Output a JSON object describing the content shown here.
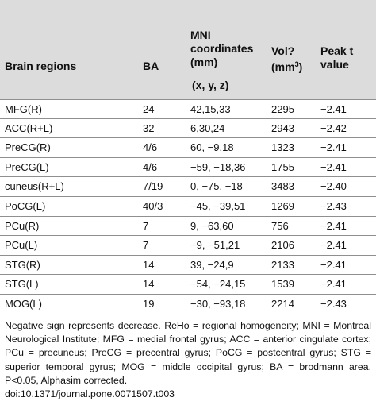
{
  "table": {
    "headers": {
      "region": "Brain regions",
      "ba": "BA",
      "mni": "MNI coordinates (mm)",
      "xyz": "(x, y, z)",
      "vol_prefix": "Vol?",
      "vol_unit_prefix": "(mm",
      "vol_unit_sup": "3",
      "vol_unit_suffix": ")",
      "peak": "Peak t value"
    },
    "rows": [
      {
        "region": "MFG(R)",
        "ba": "24",
        "coord": "42,15,33",
        "vol": "2295",
        "peak": "−2.41"
      },
      {
        "region": "ACC(R+L)",
        "ba": "32",
        "coord": "6,30,24",
        "vol": "2943",
        "peak": "−2.42"
      },
      {
        "region": "PreCG(R)",
        "ba": "4/6",
        "coord": "60, −9,18",
        "vol": "1323",
        "peak": "−2.41"
      },
      {
        "region": "PreCG(L)",
        "ba": "4/6",
        "coord": "−59, −18,36",
        "vol": "1755",
        "peak": "−2.41"
      },
      {
        "region": "cuneus(R+L)",
        "ba": "7/19",
        "coord": "0, −75, −18",
        "vol": "3483",
        "peak": "−2.40"
      },
      {
        "region": "PoCG(L)",
        "ba": "40/3",
        "coord": "−45, −39,51",
        "vol": "1269",
        "peak": "−2.43"
      },
      {
        "region": "PCu(R)",
        "ba": "7",
        "coord": "9, −63,60",
        "vol": "756",
        "peak": "−2.41"
      },
      {
        "region": "PCu(L)",
        "ba": "7",
        "coord": "−9, −51,21",
        "vol": "2106",
        "peak": "−2.41"
      },
      {
        "region": "STG(R)",
        "ba": "14",
        "coord": "39, −24,9",
        "vol": "2133",
        "peak": "−2.41"
      },
      {
        "region": "STG(L)",
        "ba": "14",
        "coord": "−54, −24,15",
        "vol": "1539",
        "peak": "−2.41"
      },
      {
        "region": "MOG(L)",
        "ba": "19",
        "coord": "−30, −93,18",
        "vol": "2214",
        "peak": "−2.43"
      }
    ]
  },
  "footnote": "Negative sign represents decrease. ReHo = regional homogeneity; MNI = Montreal Neurological Institute; MFG = medial frontal gyrus; ACC = anterior cingulate cortex; PCu = precuneus; PreCG = precentral gyrus; PoCG = postcentral gyrus; STG = superior temporal gyrus; MOG = middle occipital gyrus; BA = brodmann area. P<0.05, Alphasim corrected.",
  "doi": "doi:10.1371/journal.pone.0071507.t003"
}
